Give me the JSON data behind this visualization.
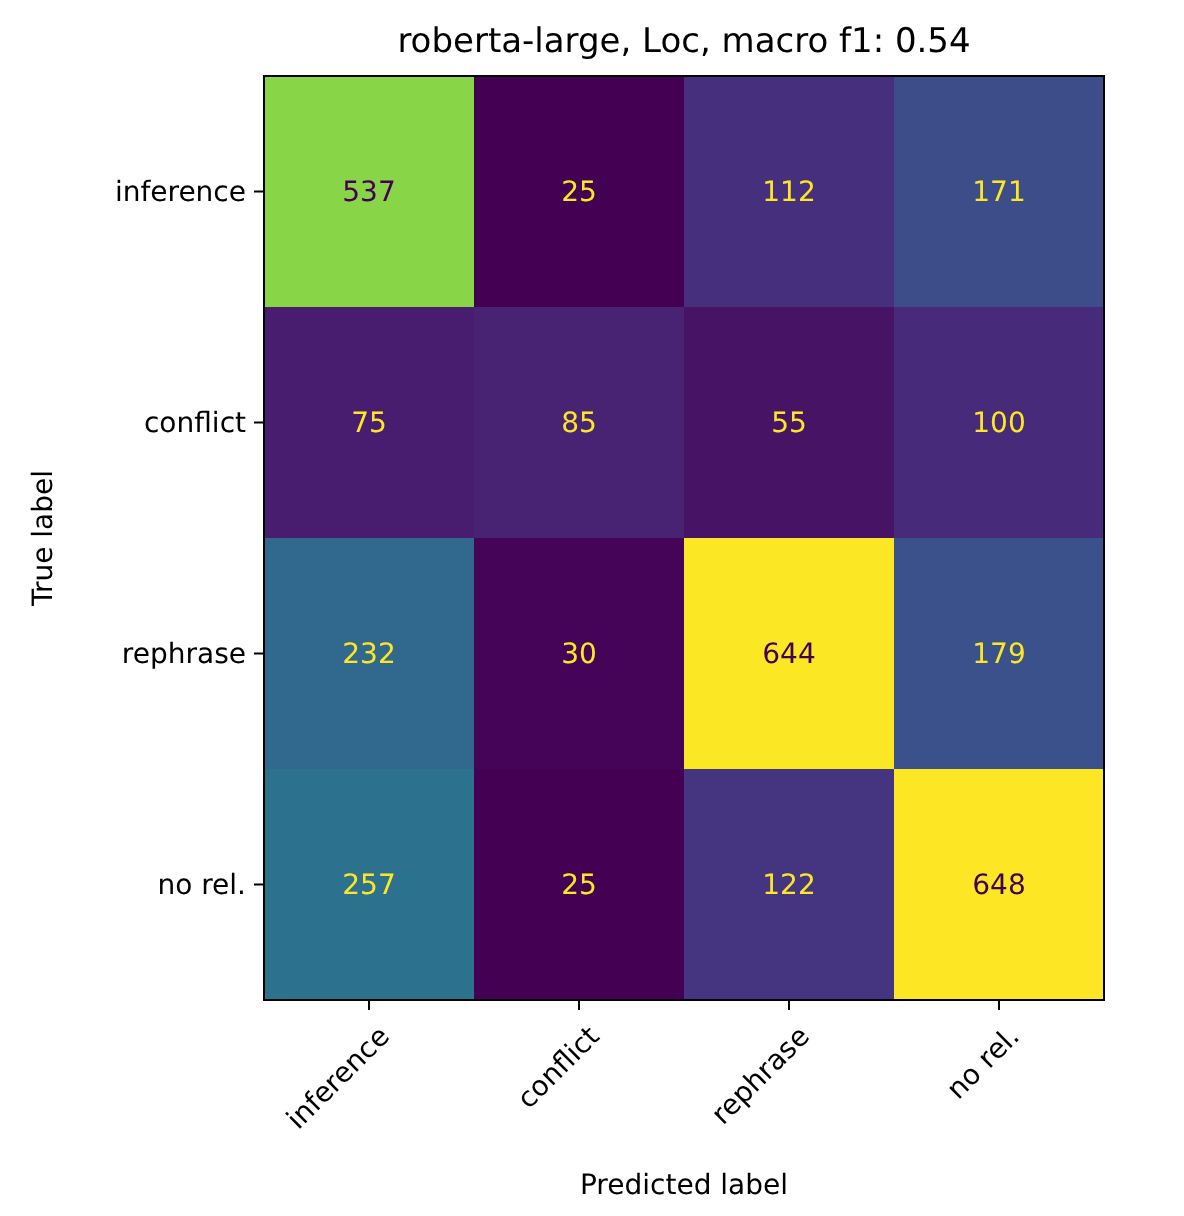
{
  "chart_data": {
    "type": "heatmap",
    "title": "roberta-large, Loc, macro f1: 0.54",
    "xlabel": "Predicted label",
    "ylabel": "True label",
    "categories": [
      "inference",
      "conflict",
      "rephrase",
      "no rel."
    ],
    "y_categories": [
      "inference",
      "conflict",
      "rephrase",
      "no rel."
    ],
    "cells": [
      [
        537,
        25,
        112,
        171
      ],
      [
        75,
        85,
        55,
        100
      ],
      [
        232,
        30,
        644,
        179
      ],
      [
        257,
        25,
        122,
        648
      ]
    ],
    "data_labels": true
  }
}
